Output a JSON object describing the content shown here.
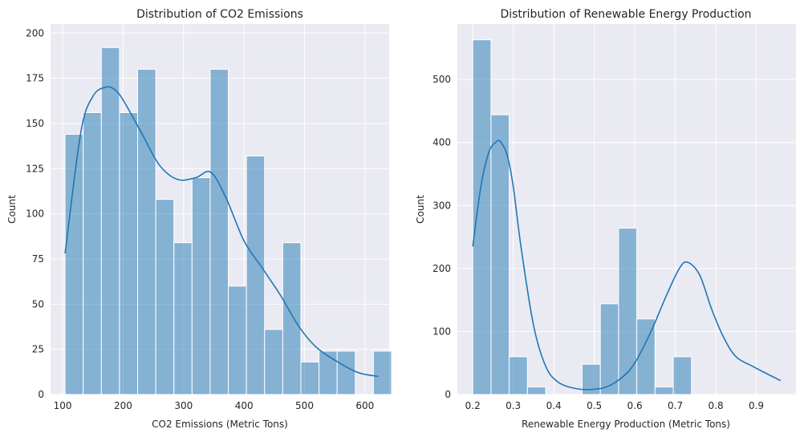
{
  "chart_data": [
    {
      "type": "bar",
      "title": "Distribution of CO2 Emissions",
      "xlabel": "CO2 Emissions (Metric Tons)",
      "ylabel": "Count",
      "xlim": [
        80,
        640
      ],
      "ylim": [
        0,
        205
      ],
      "xticks": [
        100,
        200,
        300,
        400,
        500,
        600
      ],
      "yticks": [
        0,
        25,
        50,
        75,
        100,
        125,
        150,
        175,
        200
      ],
      "bins": [
        {
          "x0": 104,
          "x1": 134,
          "count": 144
        },
        {
          "x0": 134,
          "x1": 164,
          "count": 156
        },
        {
          "x0": 164,
          "x1": 194,
          "count": 192
        },
        {
          "x0": 194,
          "x1": 224,
          "count": 156
        },
        {
          "x0": 224,
          "x1": 254,
          "count": 180
        },
        {
          "x0": 254,
          "x1": 284,
          "count": 108
        },
        {
          "x0": 284,
          "x1": 314,
          "count": 84
        },
        {
          "x0": 314,
          "x1": 344,
          "count": 120
        },
        {
          "x0": 344,
          "x1": 374,
          "count": 180
        },
        {
          "x0": 374,
          "x1": 404,
          "count": 60
        },
        {
          "x0": 404,
          "x1": 434,
          "count": 132
        },
        {
          "x0": 434,
          "x1": 464,
          "count": 36
        },
        {
          "x0": 464,
          "x1": 494,
          "count": 84
        },
        {
          "x0": 494,
          "x1": 524,
          "count": 18
        },
        {
          "x0": 524,
          "x1": 554,
          "count": 24
        },
        {
          "x0": 554,
          "x1": 584,
          "count": 24
        },
        {
          "x0": 584,
          "x1": 614,
          "count": 0
        },
        {
          "x0": 614,
          "x1": 644,
          "count": 24
        }
      ],
      "kde": {
        "x": [
          104,
          130,
          150,
          170,
          185,
          200,
          230,
          260,
          290,
          320,
          345,
          370,
          400,
          430,
          460,
          490,
          520,
          560,
          590,
          622
        ],
        "y": [
          78,
          145,
          165,
          170,
          169,
          163,
          145,
          127,
          119,
          120,
          123,
          109,
          85,
          70,
          55,
          38,
          26,
          17,
          12,
          10
        ]
      },
      "colors": {
        "bar": "#1f77b4",
        "kde": "#1f77b4",
        "background": "#eaeaf2"
      }
    },
    {
      "type": "bar",
      "title": "Distribution of Renewable Energy Production",
      "xlabel": "Renewable Energy Production (Metric Tons)",
      "ylabel": "Count",
      "xlim": [
        0.162,
        0.998
      ],
      "ylim": [
        0,
        588
      ],
      "xticks": [
        0.2,
        0.3,
        0.4,
        0.5,
        0.6,
        0.7,
        0.8,
        0.9
      ],
      "yticks": [
        0,
        100,
        200,
        300,
        400,
        500
      ],
      "bins": [
        {
          "x0": 0.2,
          "x1": 0.245,
          "count": 563
        },
        {
          "x0": 0.245,
          "x1": 0.29,
          "count": 444
        },
        {
          "x0": 0.29,
          "x1": 0.335,
          "count": 60
        },
        {
          "x0": 0.335,
          "x1": 0.38,
          "count": 12
        },
        {
          "x0": 0.38,
          "x1": 0.425,
          "count": 0
        },
        {
          "x0": 0.425,
          "x1": 0.47,
          "count": 0
        },
        {
          "x0": 0.47,
          "x1": 0.515,
          "count": 48
        },
        {
          "x0": 0.515,
          "x1": 0.56,
          "count": 144
        },
        {
          "x0": 0.56,
          "x1": 0.605,
          "count": 264
        },
        {
          "x0": 0.605,
          "x1": 0.65,
          "count": 120
        },
        {
          "x0": 0.65,
          "x1": 0.695,
          "count": 12
        },
        {
          "x0": 0.695,
          "x1": 0.74,
          "count": 60
        }
      ],
      "kde": {
        "x": [
          0.2,
          0.22,
          0.24,
          0.26,
          0.27,
          0.285,
          0.3,
          0.32,
          0.35,
          0.38,
          0.41,
          0.45,
          0.49,
          0.53,
          0.57,
          0.6,
          0.64,
          0.68,
          0.71,
          0.73,
          0.76,
          0.79,
          0.82,
          0.85,
          0.89,
          0.92,
          0.96
        ],
        "y": [
          235,
          330,
          385,
          402,
          400,
          380,
          330,
          230,
          110,
          45,
          20,
          10,
          8,
          12,
          28,
          50,
          100,
          160,
          200,
          210,
          190,
          135,
          90,
          60,
          45,
          35,
          22
        ]
      },
      "colors": {
        "bar": "#1f77b4",
        "kde": "#1f77b4",
        "background": "#eaeaf2"
      }
    }
  ]
}
